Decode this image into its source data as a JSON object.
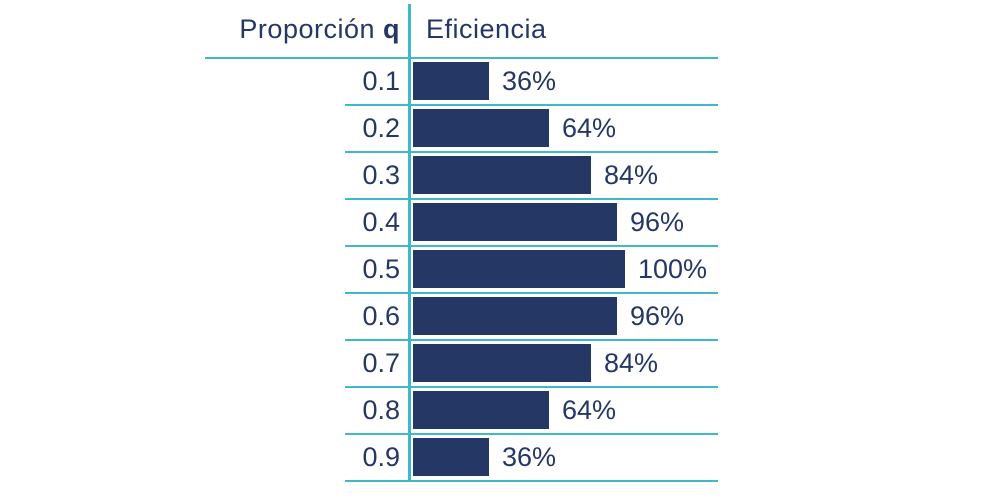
{
  "header": {
    "col1_label": "Proporción ",
    "col1_bold": "q",
    "col2_label": "Eficiencia"
  },
  "rows": [
    {
      "q": "0.1",
      "efficiency_label": "36%",
      "pct": 36
    },
    {
      "q": "0.2",
      "efficiency_label": "64%",
      "pct": 64
    },
    {
      "q": "0.3",
      "efficiency_label": "84%",
      "pct": 84
    },
    {
      "q": "0.4",
      "efficiency_label": "96%",
      "pct": 96
    },
    {
      "q": "0.5",
      "efficiency_label": "100%",
      "pct": 100
    },
    {
      "q": "0.6",
      "efficiency_label": "96%",
      "pct": 96
    },
    {
      "q": "0.7",
      "efficiency_label": "84%",
      "pct": 84
    },
    {
      "q": "0.8",
      "efficiency_label": "64%",
      "pct": 64
    },
    {
      "q": "0.9",
      "efficiency_label": "36%",
      "pct": 36
    }
  ],
  "colors": {
    "bar": "#253765",
    "text": "#253765",
    "grid_line": "#3fb9c8",
    "background": "#ffffff"
  },
  "chart_data": {
    "type": "bar",
    "orientation": "horizontal",
    "title": "",
    "xlabel": "Eficiencia",
    "ylabel": "Proporción q",
    "categories": [
      "0.1",
      "0.2",
      "0.3",
      "0.4",
      "0.5",
      "0.6",
      "0.7",
      "0.8",
      "0.9"
    ],
    "values": [
      36,
      64,
      84,
      96,
      100,
      96,
      84,
      64,
      36
    ],
    "value_suffix": "%",
    "xlim": [
      0,
      100
    ],
    "grid": "horizontal-row-separators",
    "legend": "none",
    "data_labels": "outside-end"
  }
}
